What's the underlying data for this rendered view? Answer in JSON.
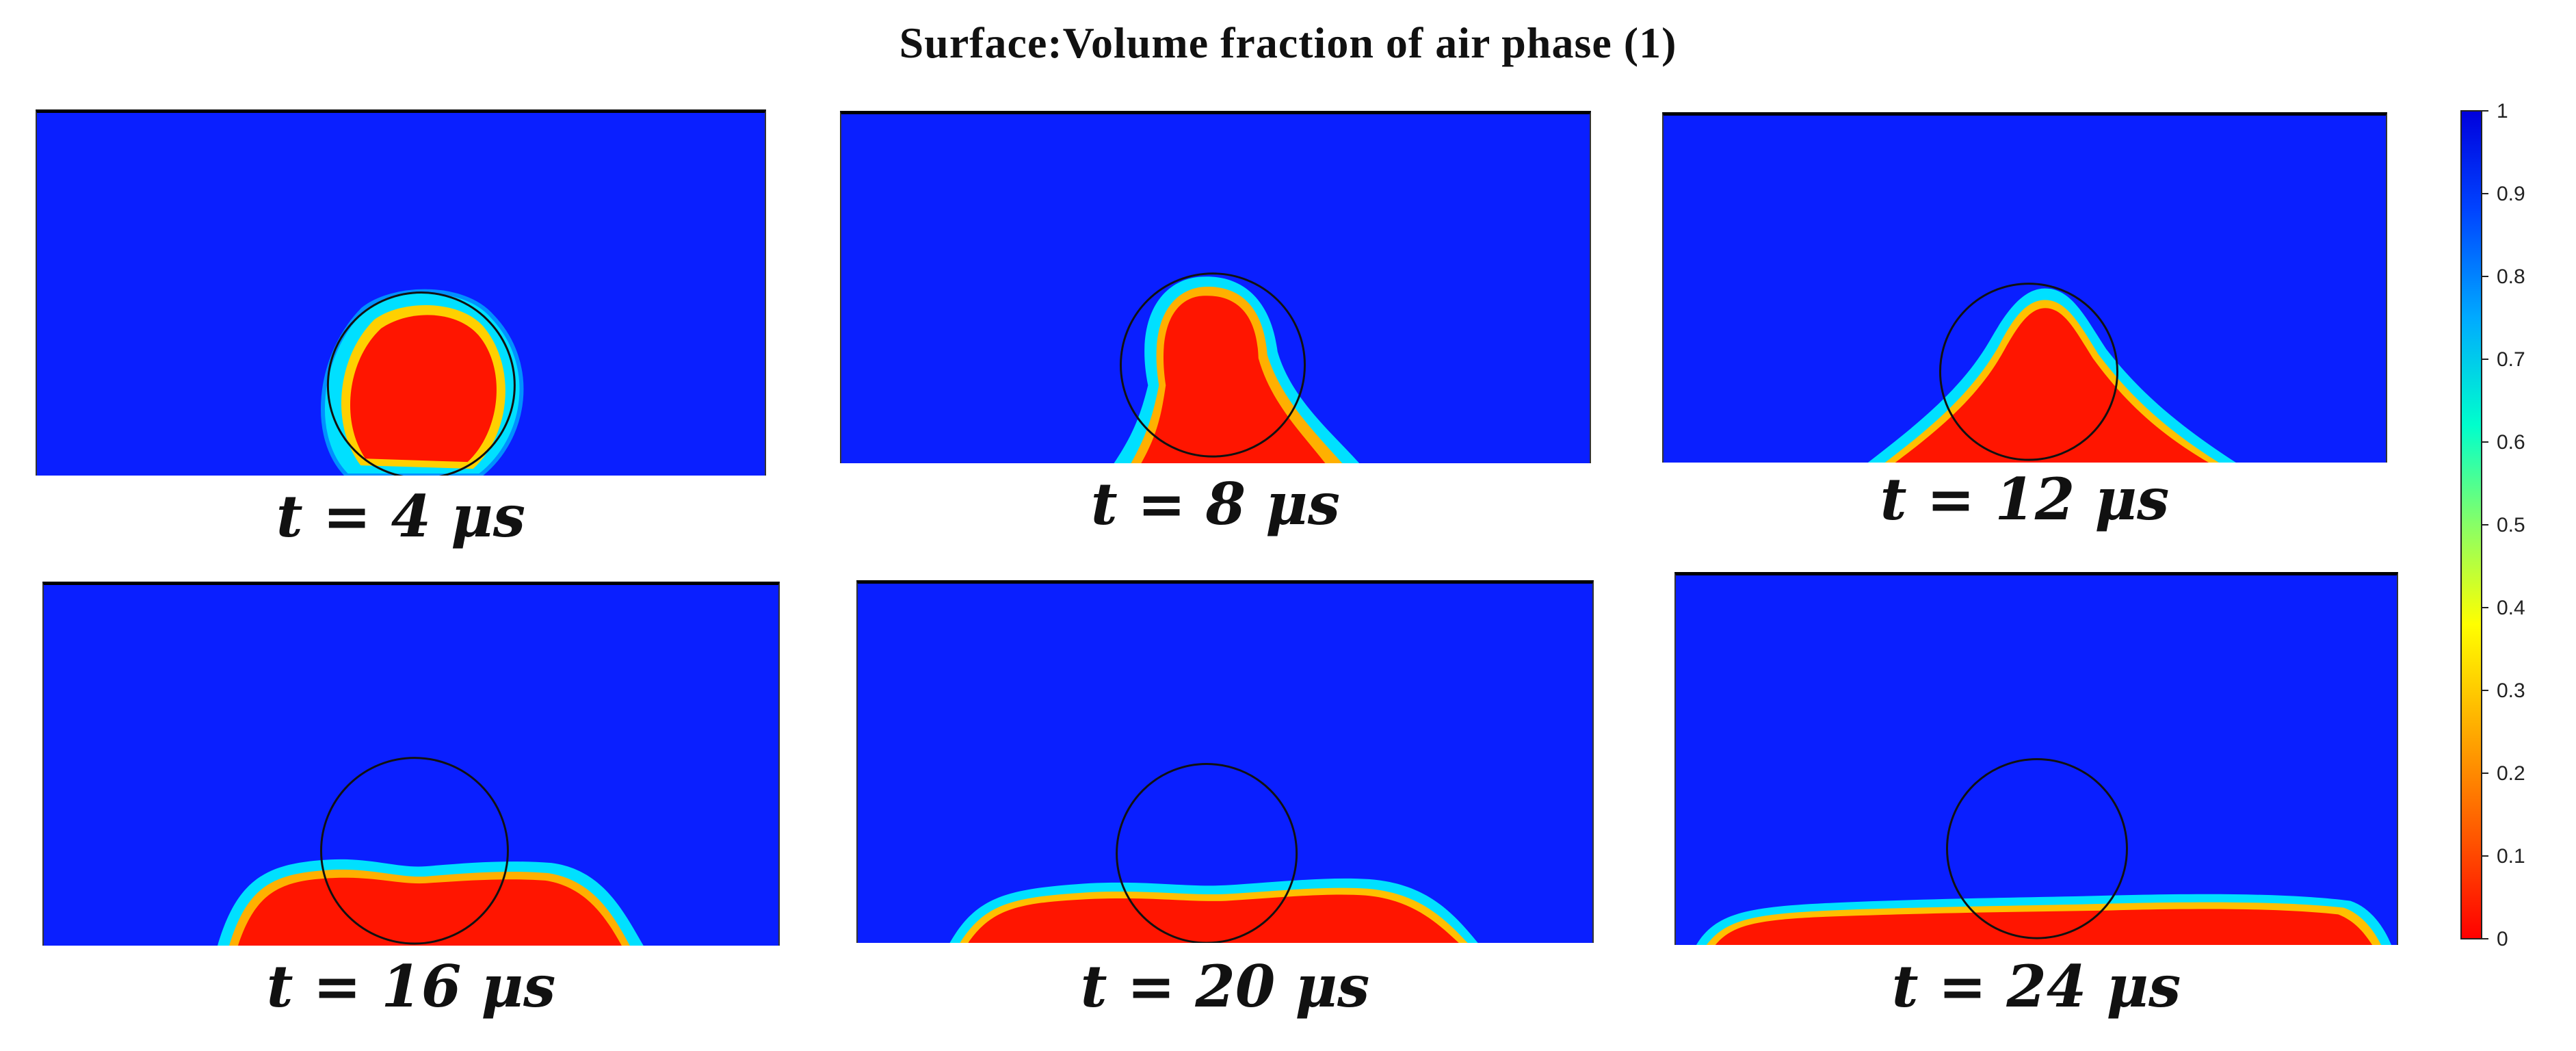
{
  "figure": {
    "title": "Surface:Volume fraction of air phase  (1)",
    "colors": {
      "liquid": "#ff1500",
      "air": "#0a1fff",
      "interface": "#00e0ff",
      "outline": "#111111"
    },
    "panels": [
      {
        "label": "t = 4 μs"
      },
      {
        "label": "t = 8 μs"
      },
      {
        "label": "t = 12 μs"
      },
      {
        "label": "t = 16 μs"
      },
      {
        "label": "t = 20 μs"
      },
      {
        "label": "t = 24 μs"
      }
    ],
    "colorbar": {
      "ticks": [
        "1",
        "0.9",
        "0.8",
        "0.7",
        "0.6",
        "0.5",
        "0.4",
        "0.3",
        "0.2",
        "0.1",
        "0"
      ],
      "min": 0,
      "max": 1,
      "colormap": "jet"
    }
  }
}
